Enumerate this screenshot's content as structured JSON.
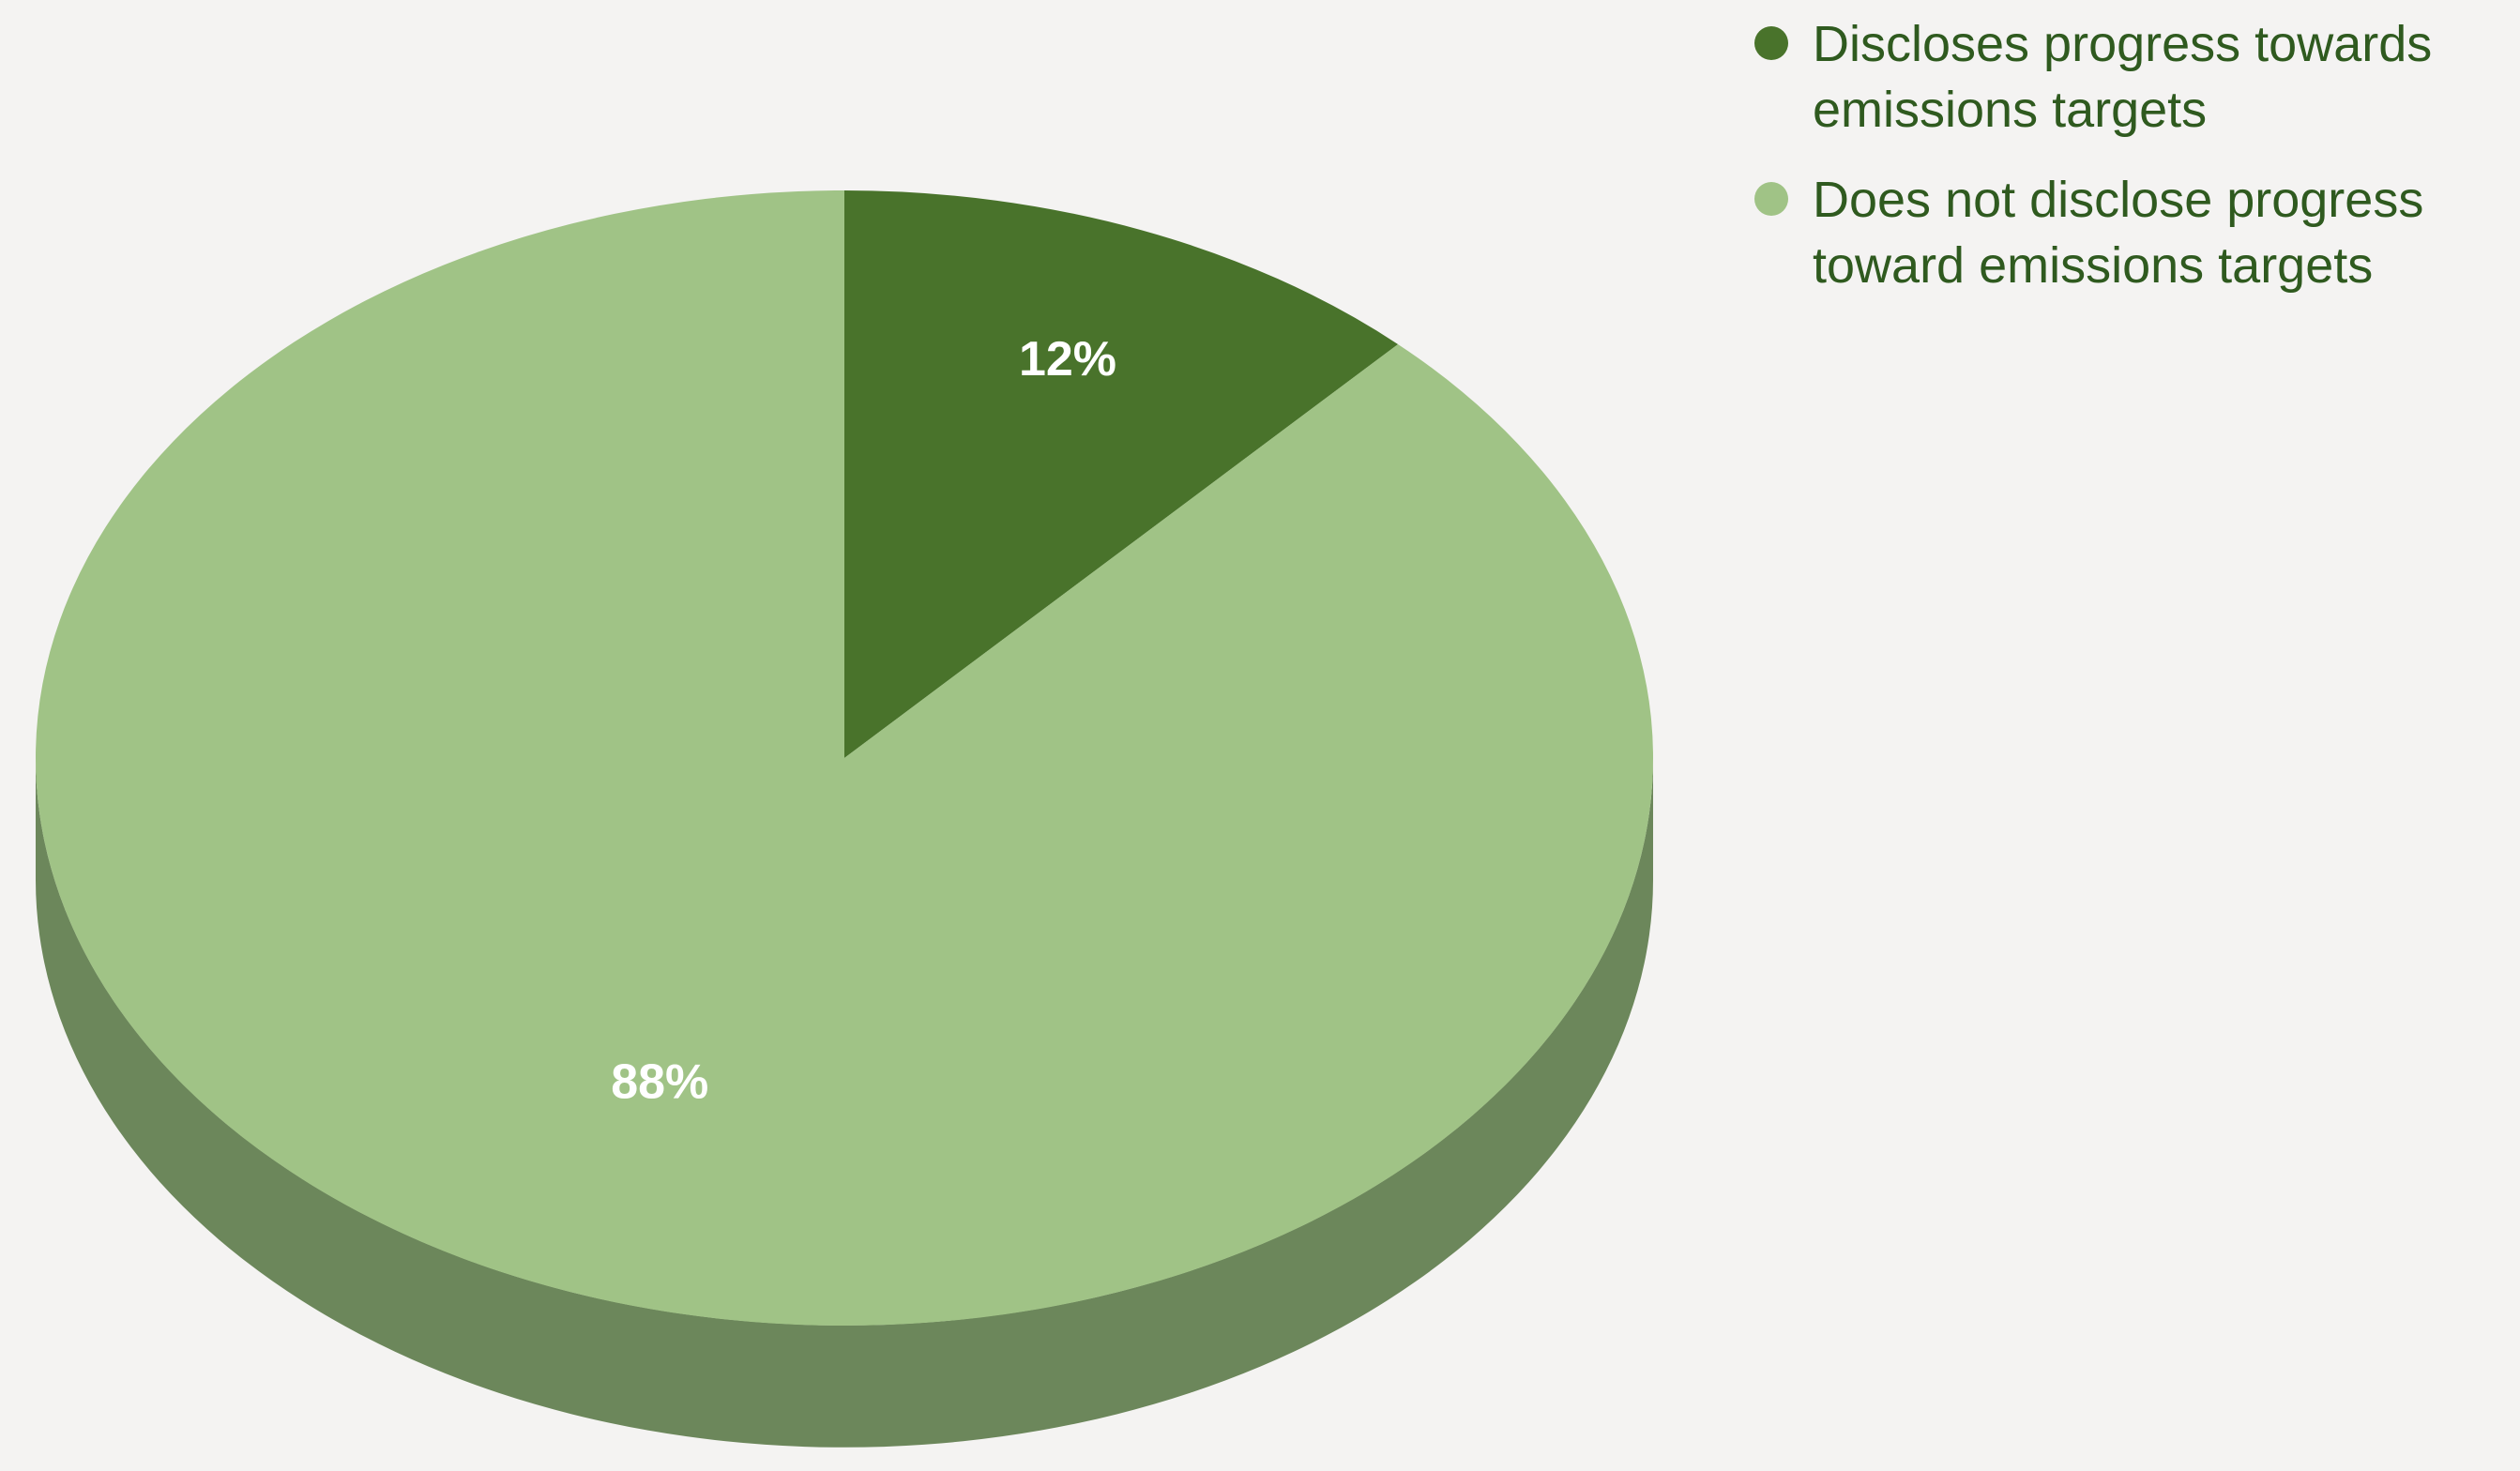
{
  "chart_data": {
    "type": "pie",
    "style": "3d",
    "title": "",
    "categories": [
      "Discloses progress towards emissions targets",
      "Does not disclose progress toward emissions targets"
    ],
    "values": [
      12,
      88
    ],
    "value_labels": [
      "12%",
      "88%"
    ],
    "colors": [
      "#49732b",
      "#a0c386"
    ],
    "depth_color": "#6c875b",
    "legend_position": "top-right"
  },
  "legend": {
    "items": [
      {
        "label_line1": "Discloses progress towards",
        "label_line2": "emissions targets",
        "color": "#49732b"
      },
      {
        "label_line1": "Does not disclose progress",
        "label_line2": "toward emissions targets",
        "color": "#a0c386"
      }
    ]
  }
}
